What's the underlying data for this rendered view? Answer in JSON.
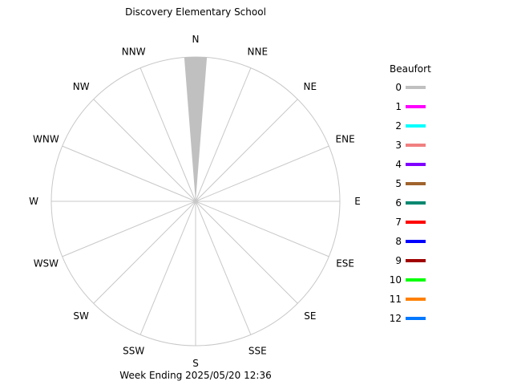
{
  "chart_data": {
    "type": "wind-rose",
    "title": "Discovery Elementary School",
    "footer": "Week Ending 2025/05/20 12:36",
    "legend_title": "Beaufort",
    "directions": [
      "N",
      "NNE",
      "NE",
      "ENE",
      "E",
      "ESE",
      "SE",
      "SSE",
      "S",
      "SSW",
      "SW",
      "WSW",
      "W",
      "WNW",
      "NW",
      "NNW"
    ],
    "beaufort_levels": [
      {
        "label": "0",
        "color": "#c0c0c0"
      },
      {
        "label": "1",
        "color": "#ff00ff"
      },
      {
        "label": "2",
        "color": "#00ffff"
      },
      {
        "label": "3",
        "color": "#f08080"
      },
      {
        "label": "4",
        "color": "#8000ff"
      },
      {
        "label": "5",
        "color": "#a0642d"
      },
      {
        "label": "6",
        "color": "#008870"
      },
      {
        "label": "7",
        "color": "#ff0000"
      },
      {
        "label": "8",
        "color": "#0000ff"
      },
      {
        "label": "9",
        "color": "#a00000"
      },
      {
        "label": "10",
        "color": "#00ff00"
      },
      {
        "label": "11",
        "color": "#ff8000"
      },
      {
        "label": "12",
        "color": "#0078ff"
      }
    ],
    "series": [
      {
        "direction": "N",
        "beaufort": "0",
        "frequency": 1.0
      }
    ],
    "rmax": 1.0,
    "grid": true
  }
}
